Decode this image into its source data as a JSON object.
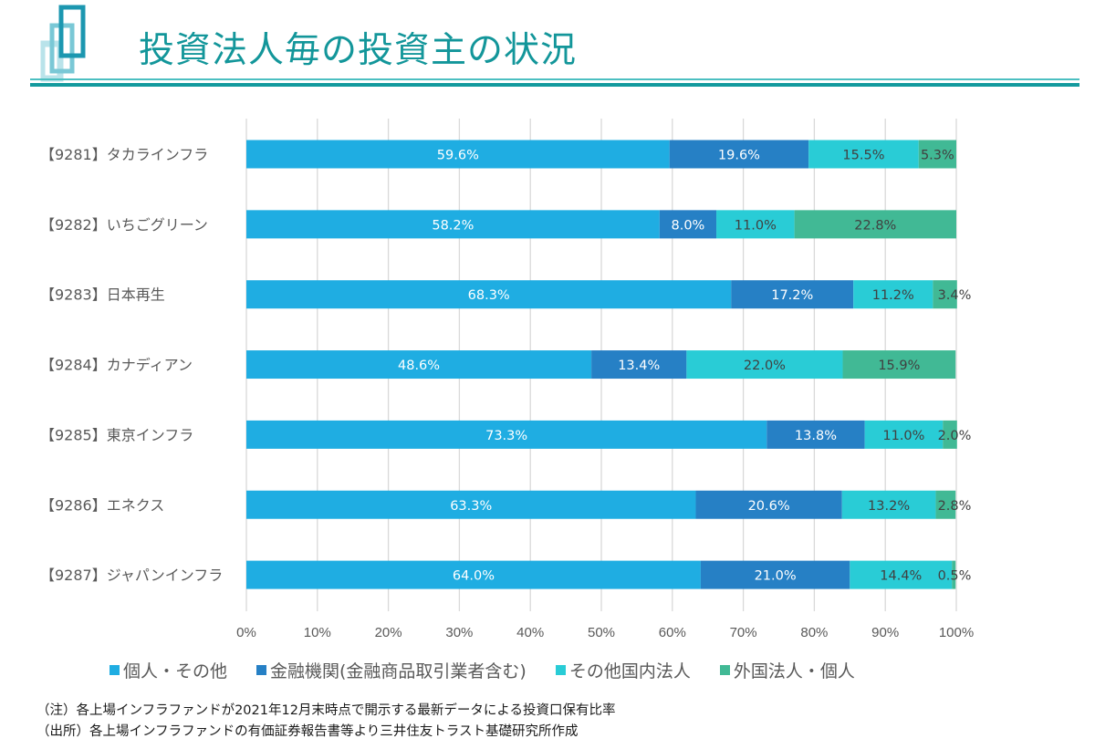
{
  "header": {
    "title": "投資法人毎の投資主の状況"
  },
  "colors": {
    "title": "#13969a",
    "rule": "#139a9e",
    "series": [
      "#1fade2",
      "#2680c5",
      "#29ccd6",
      "#41b995"
    ],
    "label_light": "#ffffff",
    "label_dark": "#404040",
    "grid": "#d9d9d9"
  },
  "chart_data": {
    "type": "bar",
    "orientation": "horizontal",
    "stacked": "percent",
    "title": "投資法人毎の投資主の状況",
    "categories": [
      "【9281】タカラインフラ",
      "【9282】いちごグリーン",
      "【9283】日本再生",
      "【9284】カナディアン",
      "【9285】東京インフラ",
      "【9286】エネクス",
      "【9287】ジャパンインフラ"
    ],
    "series": [
      {
        "name": "個人・その他",
        "values": [
          59.6,
          58.2,
          68.3,
          48.6,
          73.3,
          63.3,
          64.0
        ]
      },
      {
        "name": "金融機関(金融商品取引業者含む)",
        "values": [
          19.6,
          8.0,
          17.2,
          13.4,
          13.8,
          20.6,
          21.0
        ]
      },
      {
        "name": "その他国内法人",
        "values": [
          15.5,
          11.0,
          11.2,
          22.0,
          11.0,
          13.2,
          14.4
        ]
      },
      {
        "name": "外国法人・個人",
        "values": [
          5.3,
          22.8,
          3.4,
          15.9,
          2.0,
          2.8,
          0.5
        ]
      }
    ],
    "data_labels": [
      [
        "59.6%",
        "58.2%",
        "68.3%",
        "48.6%",
        "73.3%",
        "63.3%",
        "64.0%"
      ],
      [
        "19.6%",
        "8.0%",
        "17.2%",
        "13.4%",
        "13.8%",
        "20.6%",
        "21.0%"
      ],
      [
        "15.5%",
        "11.0%",
        "11.2%",
        "22.0%",
        "11.0%",
        "13.2%",
        "14.4%"
      ],
      [
        "5.3%",
        "22.8%",
        "3.4%",
        "15.9%",
        "2.0%",
        "2.8%",
        "0.5%"
      ]
    ],
    "xlabel": "",
    "ylabel": "",
    "xlim": [
      0,
      100
    ],
    "x_ticks": [
      "0%",
      "10%",
      "20%",
      "30%",
      "40%",
      "50%",
      "60%",
      "70%",
      "80%",
      "90%",
      "100%"
    ],
    "grid": true,
    "legend_position": "bottom"
  },
  "legend": [
    {
      "label": "個人・その他"
    },
    {
      "label": "金融機関(金融商品取引業者含む)"
    },
    {
      "label": "その他国内法人"
    },
    {
      "label": "外国法人・個人"
    }
  ],
  "notes": [
    "（注）各上場インフラファンドが2021年12月末時点で開示する最新データによる投資口保有比率",
    "（出所）各上場インフラファンドの有価証券報告書等より三井住友トラスト基礎研究所作成"
  ]
}
